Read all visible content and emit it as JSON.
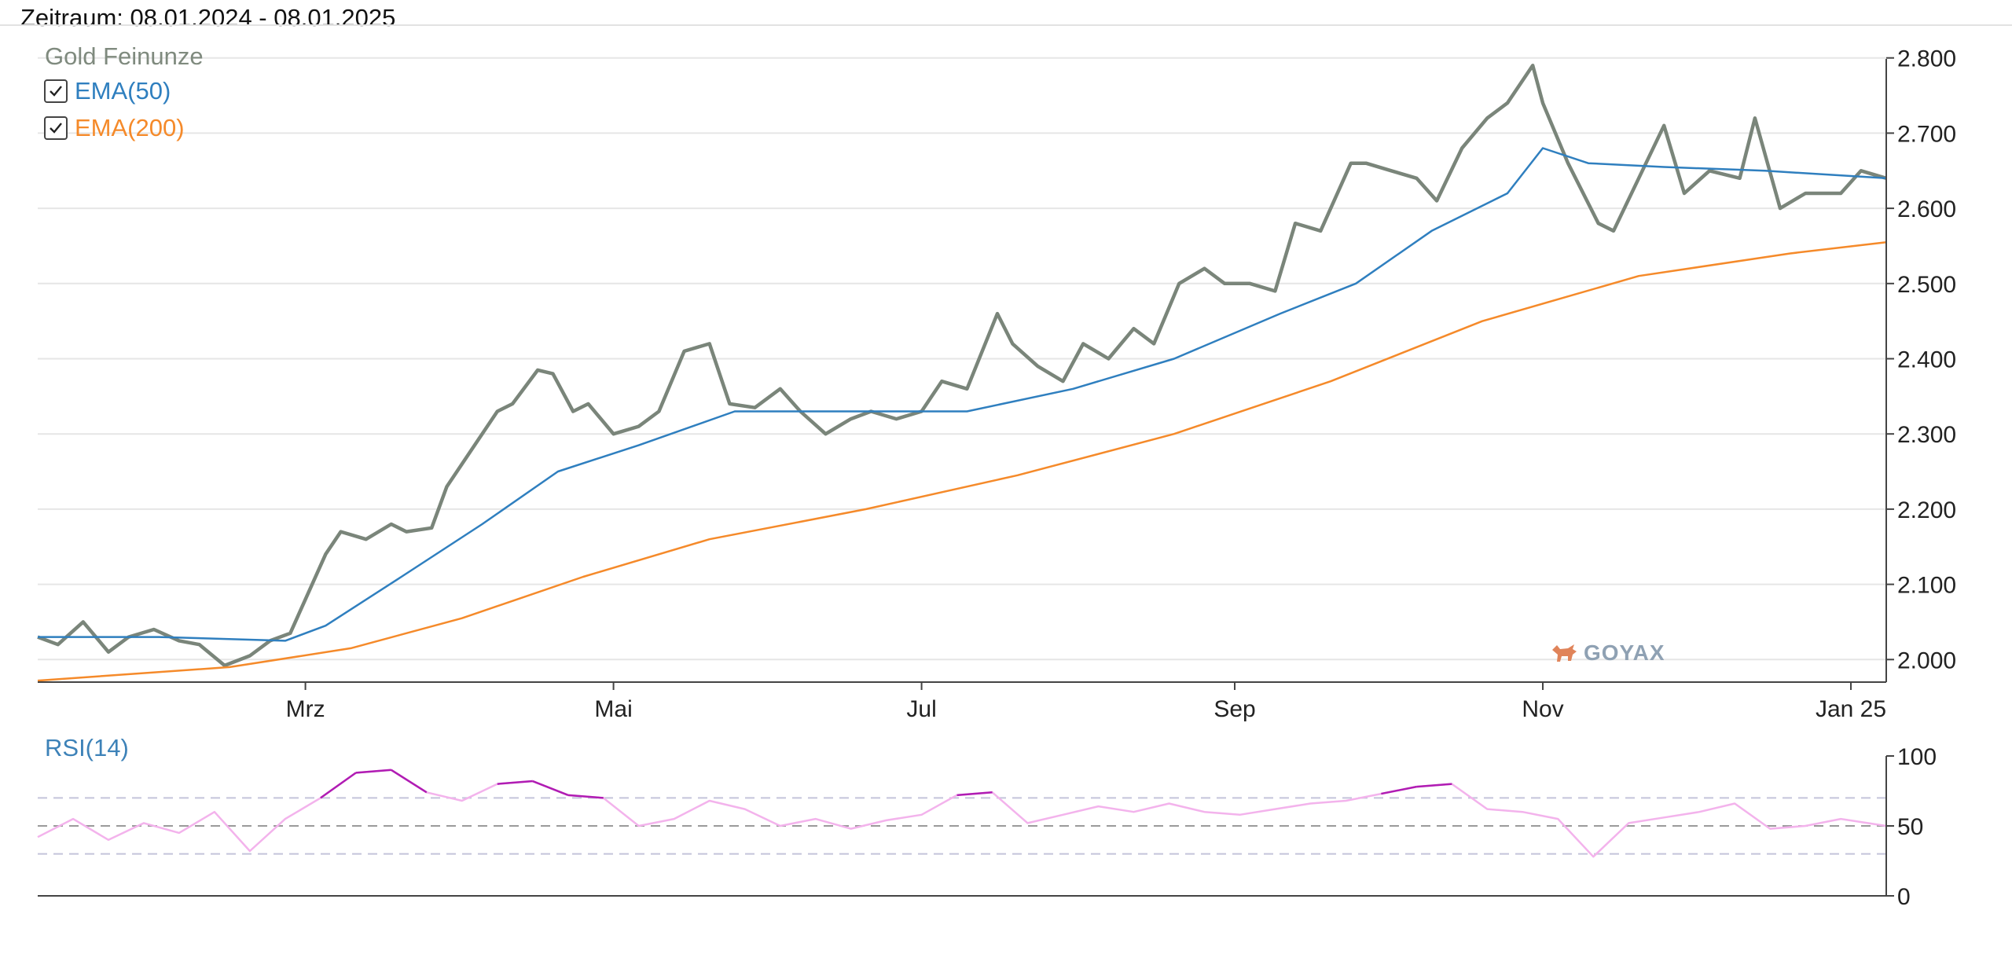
{
  "header": {
    "period": "Zeitraum: 08.01.2024 - 08.01.2025"
  },
  "legend": {
    "main_series": "Gold Feinunze",
    "ema50": {
      "label": "EMA(50)",
      "checked": true
    },
    "ema200": {
      "label": "EMA(200)",
      "checked": true
    },
    "rsi": "RSI(14)"
  },
  "watermark": {
    "text": "GOYAX"
  },
  "colors": {
    "price": "#7a857a",
    "ema50": "#2f7fbf",
    "ema200": "#f58a2a",
    "rsi": "#f3b3ec",
    "rsi_extreme": "#b01cb3",
    "grid": "#e6e6e6",
    "rsi_bands": "#c4c4da",
    "rsi_mid": "#9a9a9a",
    "axis": "#444444"
  },
  "chart_data": [
    {
      "type": "line",
      "title": "Gold Feinunze",
      "x_tick_labels": [
        "Mrz",
        "Mai",
        "Jul",
        "Sep",
        "Nov",
        "Jan 25"
      ],
      "x_tick_dates": [
        "2024-03-01",
        "2024-05-01",
        "2024-07-01",
        "2024-09-01",
        "2024-11-01",
        "2025-01-01"
      ],
      "xlim": [
        "2024-01-08",
        "2025-01-08"
      ],
      "y_ticks": [
        2000,
        2100,
        2200,
        2300,
        2400,
        2500,
        2600,
        2700,
        2800
      ],
      "y_tick_labels": [
        "2.000",
        "2.100",
        "2.200",
        "2.300",
        "2.400",
        "2.500",
        "2.600",
        "2.700",
        "2.800"
      ],
      "ylim": [
        1970,
        2830
      ],
      "grid": true,
      "y_axis_side": "right",
      "legend": "top-left",
      "series": [
        {
          "name": "Gold Feinunze",
          "x": [
            "2024-01-08",
            "2024-01-12",
            "2024-01-17",
            "2024-01-22",
            "2024-01-26",
            "2024-01-31",
            "2024-02-05",
            "2024-02-09",
            "2024-02-14",
            "2024-02-19",
            "2024-02-23",
            "2024-02-27",
            "2024-03-01",
            "2024-03-05",
            "2024-03-08",
            "2024-03-13",
            "2024-03-18",
            "2024-03-21",
            "2024-03-26",
            "2024-03-29",
            "2024-04-03",
            "2024-04-08",
            "2024-04-11",
            "2024-04-16",
            "2024-04-19",
            "2024-04-23",
            "2024-04-26",
            "2024-05-01",
            "2024-05-06",
            "2024-05-10",
            "2024-05-15",
            "2024-05-20",
            "2024-05-24",
            "2024-05-29",
            "2024-06-03",
            "2024-06-07",
            "2024-06-12",
            "2024-06-17",
            "2024-06-21",
            "2024-06-26",
            "2024-07-01",
            "2024-07-05",
            "2024-07-10",
            "2024-07-16",
            "2024-07-19",
            "2024-07-24",
            "2024-07-29",
            "2024-08-02",
            "2024-08-07",
            "2024-08-12",
            "2024-08-16",
            "2024-08-21",
            "2024-08-26",
            "2024-08-30",
            "2024-09-04",
            "2024-09-09",
            "2024-09-13",
            "2024-09-18",
            "2024-09-24",
            "2024-09-27",
            "2024-10-02",
            "2024-10-07",
            "2024-10-11",
            "2024-10-16",
            "2024-10-21",
            "2024-10-25",
            "2024-10-30",
            "2024-11-01",
            "2024-11-06",
            "2024-11-12",
            "2024-11-15",
            "2024-11-20",
            "2024-11-25",
            "2024-11-29",
            "2024-12-04",
            "2024-12-10",
            "2024-12-13",
            "2024-12-18",
            "2024-12-23",
            "2024-12-30",
            "2025-01-03",
            "2025-01-08"
          ],
          "y": [
            2030,
            2020,
            2050,
            2010,
            2030,
            2040,
            2025,
            2020,
            1992,
            2005,
            2025,
            2035,
            2080,
            2140,
            2170,
            2160,
            2180,
            2170,
            2175,
            2230,
            2280,
            2330,
            2340,
            2385,
            2380,
            2330,
            2340,
            2300,
            2310,
            2330,
            2410,
            2420,
            2340,
            2335,
            2360,
            2330,
            2300,
            2320,
            2330,
            2320,
            2330,
            2370,
            2360,
            2460,
            2420,
            2390,
            2370,
            2420,
            2400,
            2440,
            2420,
            2500,
            2520,
            2500,
            2500,
            2490,
            2580,
            2570,
            2660,
            2660,
            2650,
            2640,
            2610,
            2680,
            2720,
            2740,
            2790,
            2740,
            2660,
            2580,
            2570,
            2640,
            2710,
            2620,
            2650,
            2640,
            2720,
            2600,
            2620,
            2620,
            2650,
            2640
          ]
        },
        {
          "name": "EMA(50)",
          "x": [
            "2024-01-08",
            "2024-02-01",
            "2024-02-26",
            "2024-03-05",
            "2024-03-20",
            "2024-04-05",
            "2024-04-20",
            "2024-05-06",
            "2024-05-25",
            "2024-06-15",
            "2024-07-10",
            "2024-07-31",
            "2024-08-20",
            "2024-09-10",
            "2024-09-25",
            "2024-10-10",
            "2024-10-25",
            "2024-11-01",
            "2024-11-10",
            "2024-11-25",
            "2024-12-15",
            "2025-01-08"
          ],
          "y": [
            2030,
            2030,
            2025,
            2045,
            2110,
            2180,
            2250,
            2285,
            2330,
            2330,
            2330,
            2360,
            2400,
            2460,
            2500,
            2570,
            2620,
            2680,
            2660,
            2655,
            2650,
            2640
          ]
        },
        {
          "name": "EMA(200)",
          "x": [
            "2024-01-08",
            "2024-02-15",
            "2024-03-10",
            "2024-04-01",
            "2024-04-25",
            "2024-05-20",
            "2024-06-20",
            "2024-07-20",
            "2024-08-20",
            "2024-09-20",
            "2024-10-20",
            "2024-11-20",
            "2024-12-20",
            "2025-01-08"
          ],
          "y": [
            1972,
            1990,
            2015,
            2055,
            2110,
            2160,
            2200,
            2245,
            2300,
            2370,
            2450,
            2510,
            2540,
            2555
          ]
        }
      ]
    },
    {
      "type": "line",
      "title": "RSI(14)",
      "xlim": [
        "2024-01-08",
        "2025-01-08"
      ],
      "y_ticks": [
        0,
        50,
        100
      ],
      "y_tick_labels": [
        "0",
        "50",
        "100"
      ],
      "ylim": [
        0,
        100
      ],
      "reference_lines": [
        30,
        50,
        70
      ],
      "series": [
        {
          "name": "RSI(14)",
          "x": [
            "2024-01-08",
            "2024-01-15",
            "2024-01-22",
            "2024-01-29",
            "2024-02-05",
            "2024-02-12",
            "2024-02-19",
            "2024-02-26",
            "2024-03-04",
            "2024-03-11",
            "2024-03-18",
            "2024-03-25",
            "2024-04-01",
            "2024-04-08",
            "2024-04-15",
            "2024-04-22",
            "2024-04-29",
            "2024-05-06",
            "2024-05-13",
            "2024-05-20",
            "2024-05-27",
            "2024-06-03",
            "2024-06-10",
            "2024-06-17",
            "2024-06-24",
            "2024-07-01",
            "2024-07-08",
            "2024-07-15",
            "2024-07-22",
            "2024-07-29",
            "2024-08-05",
            "2024-08-12",
            "2024-08-19",
            "2024-08-26",
            "2024-09-02",
            "2024-09-09",
            "2024-09-16",
            "2024-09-23",
            "2024-09-30",
            "2024-10-07",
            "2024-10-14",
            "2024-10-21",
            "2024-10-28",
            "2024-11-04",
            "2024-11-11",
            "2024-11-18",
            "2024-11-25",
            "2024-12-02",
            "2024-12-09",
            "2024-12-16",
            "2024-12-23",
            "2024-12-30",
            "2025-01-08"
          ],
          "y": [
            42,
            55,
            40,
            52,
            45,
            60,
            32,
            55,
            70,
            88,
            90,
            74,
            68,
            80,
            82,
            72,
            70,
            50,
            55,
            68,
            62,
            50,
            55,
            48,
            54,
            58,
            72,
            74,
            52,
            58,
            64,
            60,
            66,
            60,
            58,
            62,
            66,
            68,
            73,
            78,
            80,
            62,
            60,
            55,
            28,
            52,
            56,
            60,
            66,
            48,
            50,
            55,
            50
          ]
        }
      ]
    }
  ]
}
